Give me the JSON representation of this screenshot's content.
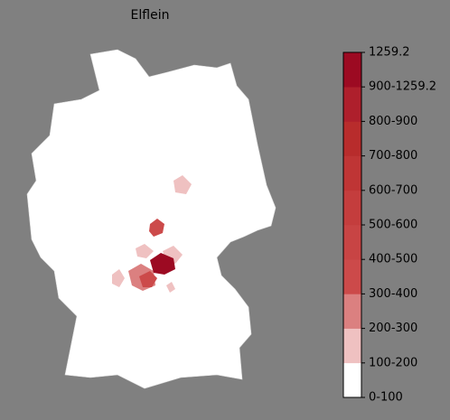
{
  "map": {
    "title": "Elflein",
    "legend": {
      "labels": [
        "0-100",
        "100-200",
        "200-300",
        "300-400",
        "400-500",
        "500-600",
        "600-700",
        "700-800",
        "800-900",
        "900-1259.2",
        "1259.2"
      ],
      "colors": [
        "#ffffff",
        "#efc1c1",
        "#db8080",
        "#cc4a4a",
        "#c84444",
        "#c43d3d",
        "#bf3535",
        "#b82c2c",
        "#ae1f2c",
        "#9c0a22"
      ]
    }
  }
}
